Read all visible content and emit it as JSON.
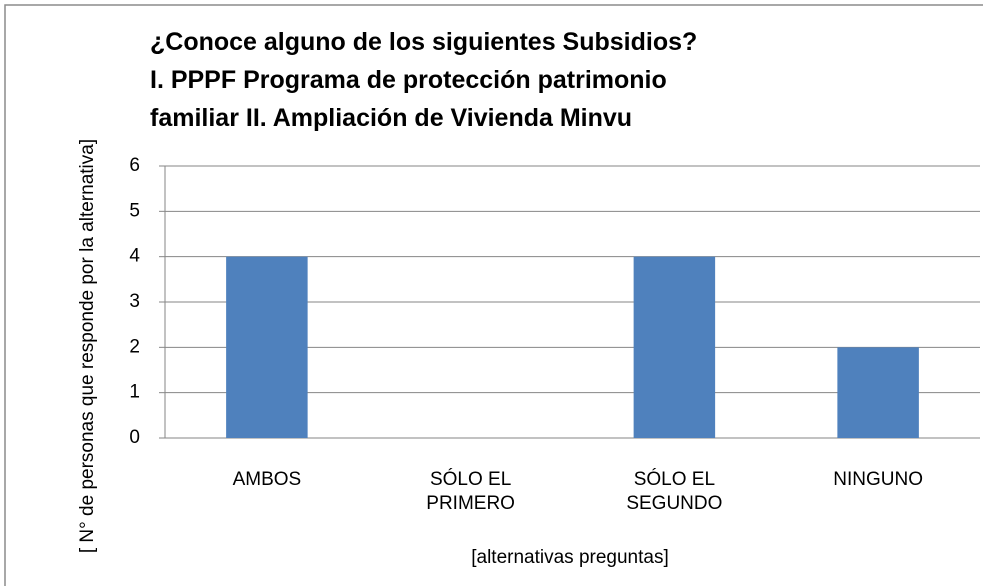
{
  "chart_data": {
    "type": "bar",
    "title": [
      "¿Conoce alguno de los siguientes Subsidios?",
      "I. PPPF Programa de protección patrimonio",
      "familiar II. Ampliación de Vivienda Minvu"
    ],
    "x_label": "[alternativas preguntas]",
    "y_label": "[ N° de personas que responde  por la alternativa]",
    "categories": [
      "AMBOS",
      "SÓLO EL PRIMERO",
      "SÓLO EL SEGUNDO",
      "NINGUNO"
    ],
    "values": [
      4,
      0,
      4,
      2
    ],
    "color": "#4f81bd",
    "ylim": [
      0,
      6
    ],
    "yticks": [
      0,
      1,
      2,
      3,
      4,
      5,
      6
    ],
    "grid": true
  }
}
